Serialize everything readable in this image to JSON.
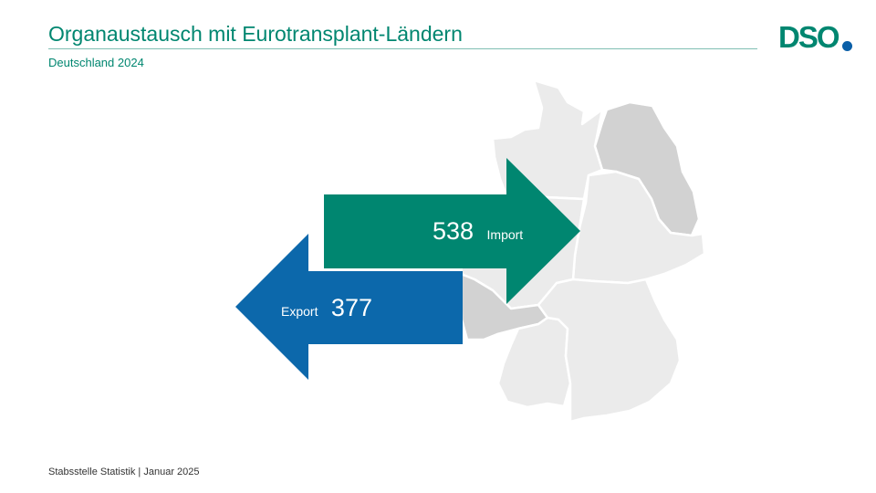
{
  "header": {
    "title": "Organaustausch mit Eurotransplant-Ländern",
    "subtitle": "Deutschland 2024"
  },
  "logo": {
    "text": "DSO",
    "dot_color": "#0a5fa8",
    "text_color": "#008670"
  },
  "import": {
    "value": "538",
    "label": "Import",
    "color": "#008670"
  },
  "export": {
    "value": "377",
    "label": "Export",
    "color": "#0c68ab"
  },
  "map": {
    "icon": "germany-map-icon",
    "light_color": "#ebebeb",
    "dark_color": "#d2d2d2"
  },
  "footer": {
    "text": "Stabsstelle Statistik | Januar 2025"
  }
}
